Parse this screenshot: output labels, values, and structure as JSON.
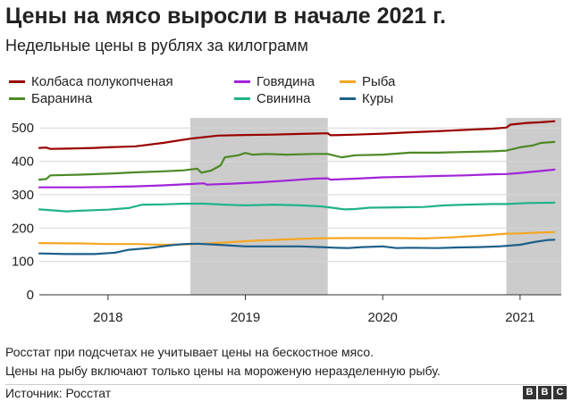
{
  "title": "Цены на мясо выросли в начале 2021 г.",
  "subtitle": "Недельные цены в рублях за килограмм",
  "notes": [
    "Росстат при подсчетах не учитывает цены на бескостное мясо.",
    "Цены на рыбу включают только цены на мороженую неразделенную рыбу."
  ],
  "source": "Источник: Росстат",
  "logo": [
    "B",
    "B",
    "C"
  ],
  "chart_data": {
    "type": "line",
    "y_ticks": [
      "500",
      "400",
      "300",
      "200",
      "100",
      "0"
    ],
    "ylim": [
      0,
      530
    ],
    "xlim": [
      2017.5,
      2021.3
    ],
    "x_ticks": [
      {
        "label": "2018",
        "x": 2018.0
      },
      {
        "label": "2019",
        "x": 2019.0
      },
      {
        "label": "2020",
        "x": 2020.0
      },
      {
        "label": "2021",
        "x": 2021.0
      }
    ],
    "shaded_periods": [
      [
        2018.6,
        2019.6
      ],
      [
        2020.9,
        2021.3
      ]
    ],
    "series": [
      {
        "name": "Колбаса полукопченая",
        "color": "#990000",
        "points": [
          [
            2017.5,
            440
          ],
          [
            2017.55,
            441
          ],
          [
            2017.58,
            437
          ],
          [
            2017.7,
            438
          ],
          [
            2017.9,
            440
          ],
          [
            2018.0,
            442
          ],
          [
            2018.2,
            445
          ],
          [
            2018.4,
            455
          ],
          [
            2018.6,
            468
          ],
          [
            2018.8,
            477
          ],
          [
            2019.0,
            479
          ],
          [
            2019.2,
            480
          ],
          [
            2019.4,
            482
          ],
          [
            2019.6,
            484
          ],
          [
            2019.62,
            478
          ],
          [
            2019.8,
            480
          ],
          [
            2020.0,
            483
          ],
          [
            2020.2,
            487
          ],
          [
            2020.4,
            490
          ],
          [
            2020.6,
            494
          ],
          [
            2020.8,
            498
          ],
          [
            2020.9,
            501
          ],
          [
            2020.93,
            510
          ],
          [
            2021.05,
            515
          ],
          [
            2021.15,
            517
          ],
          [
            2021.25,
            520
          ]
        ]
      },
      {
        "name": "Говядина",
        "color": "#a224d8",
        "points": [
          [
            2017.5,
            322
          ],
          [
            2017.8,
            322
          ],
          [
            2018.0,
            323
          ],
          [
            2018.2,
            325
          ],
          [
            2018.4,
            328
          ],
          [
            2018.6,
            332
          ],
          [
            2018.7,
            334
          ],
          [
            2018.72,
            330
          ],
          [
            2018.9,
            333
          ],
          [
            2019.1,
            337
          ],
          [
            2019.3,
            342
          ],
          [
            2019.5,
            348
          ],
          [
            2019.6,
            349
          ],
          [
            2019.62,
            345
          ],
          [
            2019.8,
            348
          ],
          [
            2020.0,
            352
          ],
          [
            2020.2,
            354
          ],
          [
            2020.4,
            356
          ],
          [
            2020.6,
            358
          ],
          [
            2020.8,
            361
          ],
          [
            2020.9,
            362
          ],
          [
            2021.0,
            365
          ],
          [
            2021.15,
            371
          ],
          [
            2021.25,
            375
          ]
        ]
      },
      {
        "name": "Рыба",
        "color": "#f5a623",
        "points": [
          [
            2017.5,
            155
          ],
          [
            2017.8,
            154
          ],
          [
            2018.0,
            152
          ],
          [
            2018.2,
            152
          ],
          [
            2018.4,
            150
          ],
          [
            2018.55,
            151
          ],
          [
            2018.7,
            153
          ],
          [
            2018.9,
            158
          ],
          [
            2019.1,
            163
          ],
          [
            2019.3,
            166
          ],
          [
            2019.5,
            169
          ],
          [
            2019.7,
            170
          ],
          [
            2019.9,
            170
          ],
          [
            2020.1,
            170
          ],
          [
            2020.3,
            169
          ],
          [
            2020.5,
            172
          ],
          [
            2020.7,
            177
          ],
          [
            2020.9,
            183
          ],
          [
            2021.0,
            184
          ],
          [
            2021.1,
            186
          ],
          [
            2021.25,
            188
          ]
        ]
      },
      {
        "name": "Баранина",
        "color": "#4c8a26",
        "points": [
          [
            2017.5,
            345
          ],
          [
            2017.55,
            347
          ],
          [
            2017.58,
            358
          ],
          [
            2017.8,
            360
          ],
          [
            2018.0,
            363
          ],
          [
            2018.2,
            367
          ],
          [
            2018.4,
            370
          ],
          [
            2018.55,
            373
          ],
          [
            2018.65,
            378
          ],
          [
            2018.68,
            366
          ],
          [
            2018.75,
            372
          ],
          [
            2018.82,
            388
          ],
          [
            2018.85,
            412
          ],
          [
            2018.95,
            418
          ],
          [
            2019.0,
            425
          ],
          [
            2019.05,
            420
          ],
          [
            2019.15,
            422
          ],
          [
            2019.3,
            420
          ],
          [
            2019.5,
            422
          ],
          [
            2019.6,
            422
          ],
          [
            2019.7,
            412
          ],
          [
            2019.8,
            418
          ],
          [
            2020.0,
            420
          ],
          [
            2020.2,
            426
          ],
          [
            2020.4,
            426
          ],
          [
            2020.6,
            428
          ],
          [
            2020.8,
            430
          ],
          [
            2020.9,
            432
          ],
          [
            2021.0,
            442
          ],
          [
            2021.1,
            448
          ],
          [
            2021.15,
            455
          ],
          [
            2021.25,
            458
          ]
        ]
      },
      {
        "name": "Свинина",
        "color": "#22b28b",
        "points": [
          [
            2017.5,
            256
          ],
          [
            2017.6,
            253
          ],
          [
            2017.7,
            250
          ],
          [
            2017.8,
            252
          ],
          [
            2018.0,
            255
          ],
          [
            2018.15,
            260
          ],
          [
            2018.25,
            270
          ],
          [
            2018.4,
            271
          ],
          [
            2018.55,
            273
          ],
          [
            2018.7,
            273
          ],
          [
            2018.85,
            270
          ],
          [
            2019.0,
            268
          ],
          [
            2019.2,
            270
          ],
          [
            2019.4,
            268
          ],
          [
            2019.55,
            265
          ],
          [
            2019.65,
            260
          ],
          [
            2019.72,
            256
          ],
          [
            2019.8,
            257
          ],
          [
            2019.9,
            261
          ],
          [
            2020.1,
            262
          ],
          [
            2020.3,
            263
          ],
          [
            2020.45,
            268
          ],
          [
            2020.6,
            270
          ],
          [
            2020.8,
            272
          ],
          [
            2020.9,
            272
          ],
          [
            2021.05,
            275
          ],
          [
            2021.25,
            276
          ]
        ]
      },
      {
        "name": "Куры",
        "color": "#1d5f8a",
        "points": [
          [
            2017.5,
            124
          ],
          [
            2017.7,
            122
          ],
          [
            2017.9,
            122
          ],
          [
            2018.05,
            126
          ],
          [
            2018.15,
            135
          ],
          [
            2018.3,
            140
          ],
          [
            2018.45,
            148
          ],
          [
            2018.55,
            152
          ],
          [
            2018.65,
            153
          ],
          [
            2018.8,
            150
          ],
          [
            2019.0,
            145
          ],
          [
            2019.2,
            145
          ],
          [
            2019.4,
            145
          ],
          [
            2019.55,
            143
          ],
          [
            2019.65,
            141
          ],
          [
            2019.75,
            140
          ],
          [
            2019.85,
            143
          ],
          [
            2020.0,
            145
          ],
          [
            2020.1,
            140
          ],
          [
            2020.2,
            141
          ],
          [
            2020.4,
            140
          ],
          [
            2020.55,
            142
          ],
          [
            2020.7,
            143
          ],
          [
            2020.85,
            145
          ],
          [
            2021.0,
            150
          ],
          [
            2021.1,
            158
          ],
          [
            2021.2,
            164
          ],
          [
            2021.25,
            165
          ]
        ]
      }
    ]
  }
}
